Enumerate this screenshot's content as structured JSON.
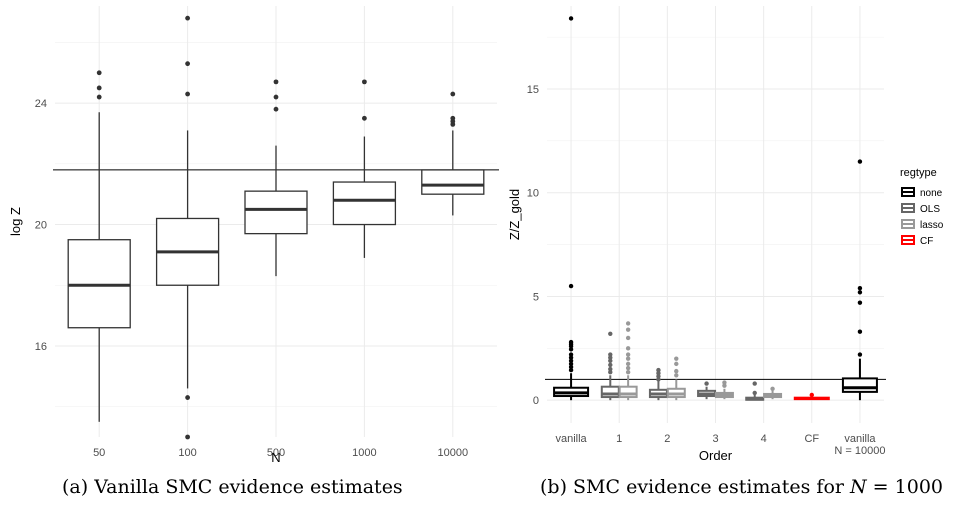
{
  "chart_data": [
    {
      "type": "boxplot",
      "xlabel": "N",
      "ylabel": "log Z",
      "ylim": [
        13.0,
        27.2
      ],
      "yticks": [
        "16",
        "20",
        "24"
      ],
      "reference_line": 21.8,
      "grid": "on",
      "categories": [
        "50",
        "100",
        "500",
        "1000",
        "10000"
      ],
      "boxes": [
        {
          "x": "50",
          "lower_whisker": 13.5,
          "q1": 16.6,
          "median": 18.0,
          "q3": 19.5,
          "upper_whisker": 23.7,
          "outliers": [
            24.2,
            24.5,
            25.0
          ]
        },
        {
          "x": "100",
          "lower_whisker": 14.6,
          "q1": 18.0,
          "median": 19.1,
          "q3": 20.2,
          "upper_whisker": 23.1,
          "outliers": [
            14.3,
            13.0,
            24.3,
            25.3,
            26.8
          ]
        },
        {
          "x": "500",
          "lower_whisker": 18.3,
          "q1": 19.7,
          "median": 20.5,
          "q3": 21.1,
          "upper_whisker": 22.6,
          "outliers": [
            23.8,
            24.2,
            24.7
          ]
        },
        {
          "x": "1000",
          "lower_whisker": 18.9,
          "q1": 20.0,
          "median": 20.8,
          "q3": 21.4,
          "upper_whisker": 22.9,
          "outliers": [
            23.5,
            24.7
          ]
        },
        {
          "x": "10000",
          "lower_whisker": 20.3,
          "q1": 21.0,
          "median": 21.3,
          "q3": 21.8,
          "upper_whisker": 23.1,
          "outliers": [
            23.3,
            23.4,
            23.5,
            24.3
          ]
        }
      ]
    },
    {
      "type": "boxplot",
      "xlabel": "Order",
      "ylabel": "Z/Z_gold",
      "ylim": [
        -1.1,
        19.0
      ],
      "yticks": [
        "0",
        "5",
        "10",
        "15"
      ],
      "reference_line": 1.0,
      "grid": "on",
      "categories": [
        "vanilla",
        "1",
        "2",
        "3",
        "4",
        "CF",
        "vanilla\nN = 10000"
      ],
      "legend": {
        "title": "regtype",
        "position": "right",
        "entries": [
          {
            "label": "none",
            "color": "#000000"
          },
          {
            "label": "OLS",
            "color": "#666666"
          },
          {
            "label": "lasso",
            "color": "#999999"
          },
          {
            "label": "CF",
            "color": "#ff0000"
          }
        ]
      },
      "boxes": [
        {
          "x": "vanilla",
          "regtype": "none",
          "lower_whisker": 0.0,
          "q1": 0.2,
          "median": 0.35,
          "q3": 0.6,
          "upper_whisker": 1.3,
          "outliers": [
            1.45,
            1.6,
            1.75,
            1.9,
            2.05,
            2.2,
            2.45,
            2.6,
            2.7,
            2.8,
            5.5,
            18.4
          ]
        },
        {
          "x": "1",
          "regtype": "OLS",
          "lower_whisker": 0.0,
          "q1": 0.15,
          "median": 0.3,
          "q3": 0.65,
          "upper_whisker": 1.2,
          "outliers": [
            1.35,
            1.5,
            1.7,
            1.9,
            2.05,
            2.2,
            3.2
          ]
        },
        {
          "x": "1",
          "regtype": "lasso",
          "lower_whisker": 0.0,
          "q1": 0.15,
          "median": 0.3,
          "q3": 0.65,
          "upper_whisker": 1.2,
          "outliers": [
            1.35,
            1.55,
            1.75,
            2.0,
            2.2,
            2.5,
            3.0,
            3.4,
            3.7
          ]
        },
        {
          "x": "2",
          "regtype": "OLS",
          "lower_whisker": 0.0,
          "q1": 0.15,
          "median": 0.3,
          "q3": 0.5,
          "upper_whisker": 0.9,
          "outliers": [
            1.0,
            1.15,
            1.3,
            1.45
          ]
        },
        {
          "x": "2",
          "regtype": "lasso",
          "lower_whisker": 0.0,
          "q1": 0.15,
          "median": 0.3,
          "q3": 0.55,
          "upper_whisker": 1.0,
          "outliers": [
            1.2,
            1.4,
            1.75,
            2.0
          ]
        },
        {
          "x": "3",
          "regtype": "OLS",
          "lower_whisker": 0.05,
          "q1": 0.2,
          "median": 0.3,
          "q3": 0.45,
          "upper_whisker": 0.65,
          "outliers": [
            0.8
          ]
        },
        {
          "x": "3",
          "regtype": "lasso",
          "lower_whisker": 0.05,
          "q1": 0.15,
          "median": 0.25,
          "q3": 0.35,
          "upper_whisker": 0.55,
          "outliers": [
            0.7,
            0.85
          ]
        },
        {
          "x": "4",
          "regtype": "OLS",
          "lower_whisker": 0.0,
          "q1": 0.02,
          "median": 0.05,
          "q3": 0.12,
          "upper_whisker": 0.25,
          "outliers": [
            0.35,
            0.8
          ]
        },
        {
          "x": "4",
          "regtype": "lasso",
          "lower_whisker": 0.05,
          "q1": 0.15,
          "median": 0.2,
          "q3": 0.3,
          "upper_whisker": 0.45,
          "outliers": [
            0.55
          ]
        },
        {
          "x": "CF",
          "regtype": "CF",
          "lower_whisker": 0.02,
          "q1": 0.05,
          "median": 0.08,
          "q3": 0.12,
          "upper_whisker": 0.18,
          "outliers": [
            0.25
          ]
        },
        {
          "x": "vanilla\nN = 10000",
          "regtype": "none",
          "lower_whisker": 0.0,
          "q1": 0.4,
          "median": 0.6,
          "q3": 1.05,
          "upper_whisker": 2.0,
          "outliers": [
            2.2,
            3.3,
            4.7,
            5.2,
            5.4,
            11.5
          ]
        }
      ]
    }
  ],
  "captions": {
    "a": "(a) Vanilla SMC evidence estimates",
    "b_prefix": "(b) SMC evidence estimates for ",
    "b_math_var": "N",
    "b_math_rest": " = 1000"
  }
}
